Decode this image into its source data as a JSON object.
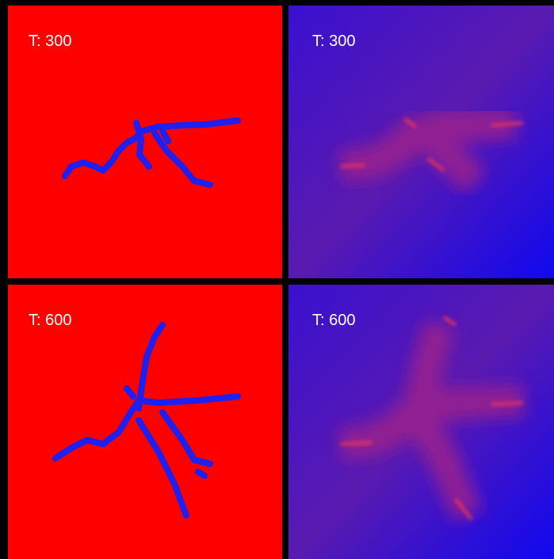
{
  "panels": [
    {
      "label": "T: 300"
    },
    {
      "label": "T: 300"
    },
    {
      "label": "T: 600"
    },
    {
      "label": "T: 600"
    }
  ]
}
